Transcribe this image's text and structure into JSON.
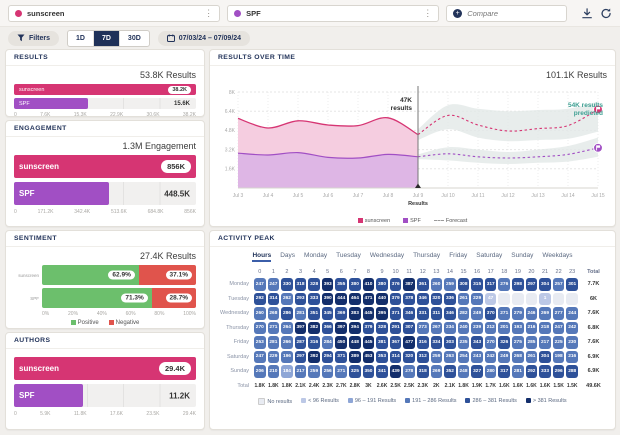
{
  "colors": {
    "sunscreen": "#d63573",
    "spf": "#a14fc4",
    "positive": "#6cbf6c",
    "negative": "#e0544c",
    "teal": "#3fa093",
    "navy": "#22335a",
    "forecast_band": "#e2e8e7",
    "heat": [
      "#e8ebf2",
      "#bcc8e6",
      "#8ea6d6",
      "#5578b9",
      "#2e5199",
      "#132e6b"
    ]
  },
  "topbar": {
    "queries": [
      {
        "label": "sunscreen",
        "color": "#d63573"
      },
      {
        "label": "SPF",
        "color": "#a14fc4"
      }
    ],
    "compare_placeholder": "Compare"
  },
  "toolbar": {
    "filters_label": "Filters",
    "ranges": [
      "1D",
      "7D",
      "30D"
    ],
    "active_range": "7D",
    "date_range": "07/03/24 – 07/09/24"
  },
  "chart_data": [
    {
      "id": "results",
      "type": "bar",
      "title": "RESULTS",
      "total": "53.8K Results",
      "categories": [
        "sunscreen",
        "SPF"
      ],
      "values": [
        38200,
        15600
      ],
      "rows": [
        {
          "label": "sunscreen",
          "value_label": "38.2K",
          "pct": 100
        },
        {
          "label": "SPF",
          "value_label": "15.6K",
          "pct": 40.8
        }
      ],
      "xlim": [
        0,
        38200
      ],
      "axis_ticks": [
        "0",
        "7.6K",
        "15.3K",
        "22.9K",
        "30.6K",
        "38.2K"
      ]
    },
    {
      "id": "engagement",
      "type": "bar",
      "title": "ENGAGEMENT",
      "total": "1.3M Engagement",
      "categories": [
        "sunscreen",
        "SPF"
      ],
      "values": [
        856000,
        448500
      ],
      "rows": [
        {
          "label": "sunscreen",
          "value_label": "856K",
          "pct": 100
        },
        {
          "label": "SPF",
          "value_label": "448.5K",
          "pct": 52.4
        }
      ],
      "xlim": [
        0,
        856000
      ],
      "axis_ticks": [
        "0",
        "171.2K",
        "342.4K",
        "513.6K",
        "684.8K",
        "856K"
      ]
    },
    {
      "id": "sentiment",
      "type": "bar",
      "title": "SENTIMENT",
      "total": "27.4K Results",
      "stacked": true,
      "categories": [
        "sunscreen",
        "SPF"
      ],
      "series": [
        {
          "name": "Positive",
          "values": [
            62.9,
            71.3
          ]
        },
        {
          "name": "Negative",
          "values": [
            37.1,
            28.7
          ]
        }
      ],
      "rows": [
        {
          "label": "sunscreen",
          "positive": "62.9%",
          "negative": "37.1%",
          "positive_pct": 62.9
        },
        {
          "label": "SPF",
          "positive": "71.3%",
          "negative": "28.7%",
          "positive_pct": 71.3
        }
      ],
      "axis_ticks": [
        "0%",
        "20%",
        "40%",
        "60%",
        "80%",
        "100%"
      ],
      "legend": [
        "Positive",
        "Negative"
      ]
    },
    {
      "id": "authors",
      "type": "bar",
      "title": "AUTHORS",
      "categories": [
        "sunscreen",
        "SPF"
      ],
      "values": [
        29400,
        11200
      ],
      "rows": [
        {
          "label": "sunscreen",
          "value_label": "29.4K",
          "pct": 100
        },
        {
          "label": "SPF",
          "value_label": "11.2K",
          "pct": 38.1
        }
      ],
      "xlim": [
        0,
        29400
      ],
      "axis_ticks": [
        "0",
        "5.9K",
        "11.8K",
        "17.6K",
        "23.5K",
        "29.4K"
      ]
    },
    {
      "id": "results_over_time",
      "type": "line",
      "title": "RESULTS OVER TIME",
      "total": "101.1K Results",
      "x_ticks": [
        "Jul 3",
        "Jul 4",
        "Jul 5",
        "Jul 6",
        "Jul 7",
        "Jul 8",
        "Jul 9",
        "Jul 10",
        "Jul 11",
        "Jul 12",
        "Jul 13",
        "Jul 14",
        "Jul 15"
      ],
      "y_ticks": [
        {
          "v": 1.6,
          "label": "1.6K"
        },
        {
          "v": 3.2,
          "label": "3.2K"
        },
        {
          "v": 4.8,
          "label": "4.8K"
        },
        {
          "v": 6.4,
          "label": "6.4K"
        },
        {
          "v": 8,
          "label": "8K"
        }
      ],
      "ylim": [
        0,
        8
      ],
      "unit": "K results per day",
      "series": [
        {
          "name": "sunscreen",
          "values": [
            5.8,
            5.0,
            5.6,
            5.25,
            5.2,
            5.85,
            4.45
          ]
        },
        {
          "name": "SPF",
          "values": [
            2.9,
            2.75,
            2.95,
            2.55,
            2.5,
            2.8,
            2.6
          ]
        }
      ],
      "forecast_start_index": 6,
      "forecast": [
        {
          "name": "sunscreen",
          "values": [
            4.45,
            6.05,
            5.25,
            4.75,
            4.95,
            5.2,
            6.55
          ],
          "upper": [
            4.9,
            6.9,
            6.6,
            6.4,
            6.5,
            6.6,
            7.2
          ],
          "lower": [
            4.0,
            4.9,
            4.2,
            3.9,
            4.0,
            4.1,
            4.7
          ]
        },
        {
          "name": "SPF",
          "values": [
            2.6,
            2.85,
            2.6,
            2.5,
            2.6,
            2.8,
            3.35
          ],
          "upper": [
            2.8,
            3.4,
            3.2,
            3.0,
            3.2,
            3.5,
            4.2
          ],
          "lower": [
            2.4,
            2.3,
            2.1,
            2.0,
            2.1,
            2.2,
            2.6
          ]
        }
      ],
      "annotation": {
        "line1": "47K",
        "line2": "results",
        "caption": "Results",
        "x_tick": "Jul 9"
      },
      "predicted": {
        "line1": "54K results",
        "line2": "predicted"
      },
      "legend": [
        "sunscreen",
        "SPF",
        "Forecast"
      ]
    },
    {
      "id": "activity_peak",
      "type": "heatmap",
      "title": "ACTIVITY PEAK",
      "tabs": [
        "Hours",
        "Days",
        "Monday",
        "Tuesday",
        "Wednesday",
        "Thursday",
        "Friday",
        "Saturday",
        "Sunday",
        "Weekdays"
      ],
      "active_tab": "Hours",
      "columns": [
        "0",
        "1",
        "2",
        "3",
        "4",
        "5",
        "6",
        "7",
        "8",
        "9",
        "10",
        "11",
        "12",
        "13",
        "14",
        "15",
        "16",
        "17",
        "18",
        "19",
        "20",
        "21",
        "22",
        "23"
      ],
      "total_label": "Total",
      "rows": [
        {
          "day": "Monday",
          "values": [
            247,
            247,
            330,
            318,
            328,
            393,
            355,
            380,
            410,
            380,
            376,
            387,
            361,
            260,
            259,
            308,
            315,
            317,
            276,
            298,
            297,
            304,
            257,
            301
          ],
          "total": "7.7K"
        },
        {
          "day": "Tuesday",
          "values": [
            292,
            314,
            262,
            293,
            333,
            390,
            444,
            464,
            471,
            440,
            379,
            378,
            346,
            320,
            336,
            261,
            229,
            47,
            null,
            null,
            null,
            1,
            null,
            null
          ],
          "total": "6K"
        },
        {
          "day": "Wednesday",
          "values": [
            260,
            268,
            286,
            281,
            351,
            345,
            369,
            383,
            445,
            395,
            371,
            346,
            331,
            311,
            346,
            282,
            249,
            370,
            271,
            279,
            246,
            269,
            277,
            244
          ],
          "total": "7.6K"
        },
        {
          "day": "Thursday",
          "values": [
            270,
            271,
            264,
            397,
            382,
            366,
            397,
            394,
            379,
            328,
            291,
            307,
            273,
            267,
            234,
            240,
            239,
            212,
            201,
            193,
            216,
            218,
            247,
            242
          ],
          "total": "6.8K"
        },
        {
          "day": "Friday",
          "values": [
            253,
            281,
            266,
            287,
            316,
            284,
            450,
            448,
            445,
            381,
            367,
            477,
            316,
            334,
            303,
            235,
            343,
            270,
            326,
            275,
            285,
            217,
            225,
            230
          ],
          "total": "7.6K"
        },
        {
          "day": "Saturday",
          "values": [
            247,
            229,
            196,
            297,
            392,
            294,
            371,
            389,
            453,
            353,
            314,
            320,
            312,
            259,
            263,
            254,
            243,
            242,
            249,
            268,
            261,
            304,
            198,
            216
          ],
          "total": "6.9K"
        },
        {
          "day": "Sunday",
          "values": [
            206,
            210,
            184,
            217,
            259,
            256,
            271,
            325,
            350,
            341,
            439,
            278,
            318,
            269,
            352,
            248,
            327,
            280,
            317,
            281,
            292,
            333,
            296,
            288
          ],
          "total": "6.9K"
        }
      ],
      "column_totals": [
        "1.8K",
        "1.8K",
        "1.8K",
        "2.1K",
        "2.4K",
        "2.3K",
        "2.7K",
        "2.8K",
        "3K",
        "2.6K",
        "2.5K",
        "2.5K",
        "2.3K",
        "2K",
        "2.1K",
        "1.8K",
        "1.9K",
        "1.7K",
        "1.6K",
        "1.6K",
        "1.6K",
        "1.6K",
        "1.5K",
        "1.5K"
      ],
      "grand_total": "49.6K",
      "bucket_thresholds": [
        96,
        191,
        286,
        381
      ],
      "legend": [
        {
          "label": "No results",
          "bucket": 0
        },
        {
          "label": "< 96 Results",
          "bucket": 1
        },
        {
          "label": "96 – 191 Results",
          "bucket": 2
        },
        {
          "label": "191 – 286 Results",
          "bucket": 3
        },
        {
          "label": "286 – 381 Results",
          "bucket": 4
        },
        {
          "label": "> 381 Results",
          "bucket": 5
        }
      ]
    }
  ]
}
